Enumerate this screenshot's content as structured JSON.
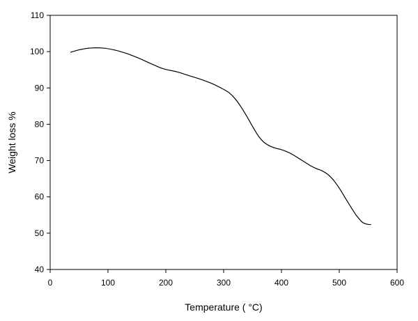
{
  "chart_data": {
    "type": "line",
    "title": "",
    "xlabel": "Temperature ( °C)",
    "ylabel": "Weight loss %",
    "xlim": [
      0,
      600
    ],
    "ylim": [
      40,
      110
    ],
    "xticks": [
      0,
      100,
      200,
      300,
      400,
      500,
      600
    ],
    "yticks": [
      40,
      50,
      60,
      70,
      80,
      90,
      100,
      110
    ],
    "grid": false,
    "legend": "none",
    "line_color": "#000000",
    "series": [
      {
        "x": [
          35,
          50,
          70,
          90,
          110,
          130,
          150,
          170,
          190,
          200,
          220,
          240,
          260,
          280,
          300,
          310,
          320,
          330,
          340,
          350,
          360,
          370,
          380,
          390,
          400,
          410,
          420,
          430,
          440,
          450,
          460,
          470,
          480,
          490,
          500,
          510,
          520,
          530,
          540,
          550,
          555
        ],
        "y": [
          99.8,
          100.5,
          101.0,
          101.0,
          100.5,
          99.6,
          98.4,
          97.0,
          95.6,
          95.1,
          94.4,
          93.4,
          92.4,
          91.2,
          89.6,
          88.6,
          87.0,
          84.8,
          82.2,
          79.4,
          76.8,
          75.0,
          74.0,
          73.4,
          73.0,
          72.4,
          71.6,
          70.6,
          69.6,
          68.6,
          67.8,
          67.2,
          66.2,
          64.6,
          62.4,
          59.8,
          57.2,
          54.8,
          53.0,
          52.4,
          52.4
        ]
      }
    ]
  }
}
